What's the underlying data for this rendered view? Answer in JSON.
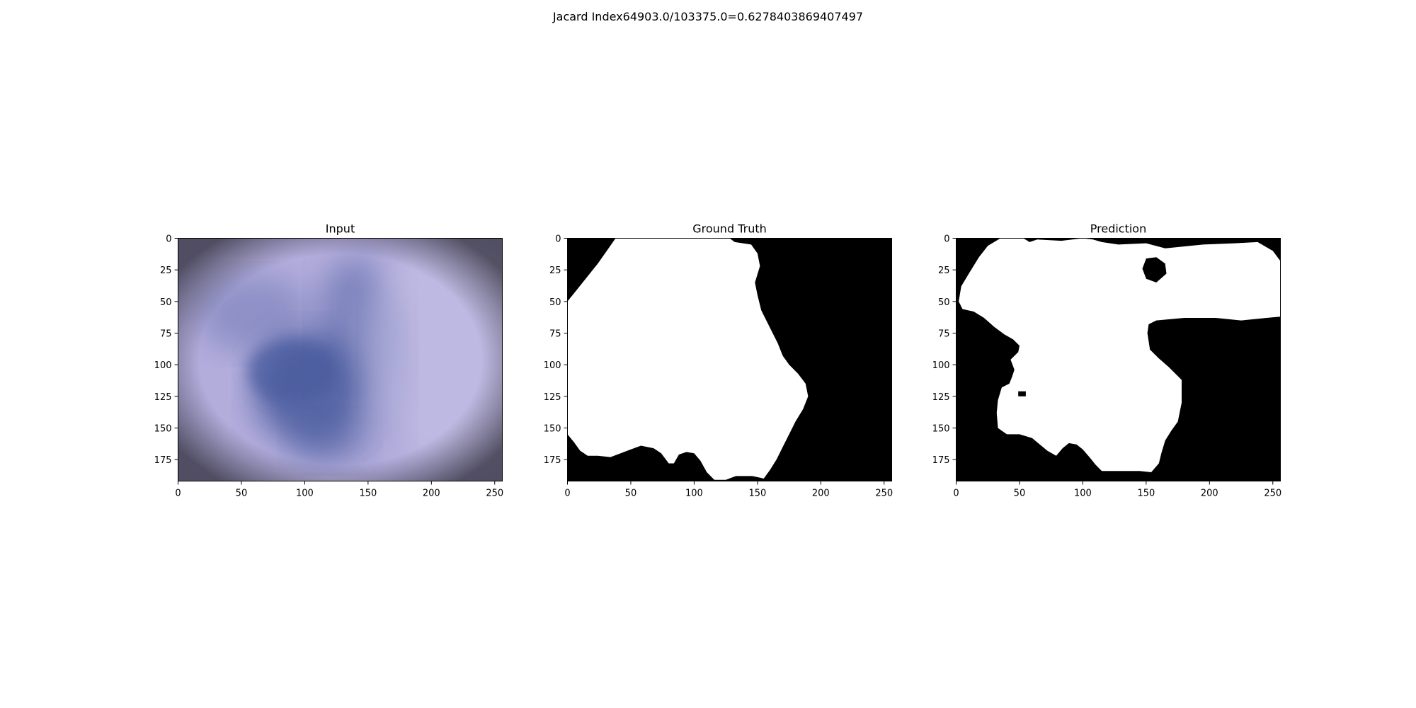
{
  "figure": {
    "title": "Jacard Index64903.0/103375.0=0.6278403869407497"
  },
  "colors": {
    "mask_foreground": "#ffffff",
    "mask_background": "#000000",
    "input_base": "#b3addc",
    "input_lesion": "#4a5b9e",
    "input_vignette": "#4a3c5a"
  },
  "chart_data": [
    {
      "type": "image",
      "title": "Input",
      "content": "dermoscopy image",
      "x_ticks": [
        0,
        50,
        100,
        150,
        200,
        250
      ],
      "y_ticks": [
        0,
        25,
        50,
        75,
        100,
        125,
        150,
        175
      ],
      "xlim": [
        0,
        256
      ],
      "ylim": [
        192,
        0
      ]
    },
    {
      "type": "image",
      "title": "Ground Truth",
      "content": "binary mask",
      "x_ticks": [
        0,
        50,
        100,
        150,
        200,
        250
      ],
      "y_ticks": [
        0,
        25,
        50,
        75,
        100,
        125,
        150,
        175
      ],
      "xlim": [
        0,
        256
      ],
      "ylim": [
        192,
        0
      ],
      "mask_outline": [
        [
          38,
          0
        ],
        [
          128,
          0
        ],
        [
          132,
          3
        ],
        [
          145,
          5
        ],
        [
          150,
          12
        ],
        [
          152,
          22
        ],
        [
          148,
          35
        ],
        [
          150,
          45
        ],
        [
          153,
          57
        ],
        [
          158,
          67
        ],
        [
          162,
          75
        ],
        [
          166,
          83
        ],
        [
          170,
          93
        ],
        [
          175,
          100
        ],
        [
          182,
          107
        ],
        [
          188,
          115
        ],
        [
          190,
          125
        ],
        [
          186,
          135
        ],
        [
          180,
          145
        ],
        [
          175,
          155
        ],
        [
          170,
          165
        ],
        [
          165,
          175
        ],
        [
          160,
          183
        ],
        [
          155,
          190
        ],
        [
          146,
          188
        ],
        [
          133,
          188
        ],
        [
          125,
          191
        ],
        [
          116,
          191
        ],
        [
          110,
          185
        ],
        [
          105,
          176
        ],
        [
          100,
          170
        ],
        [
          94,
          169
        ],
        [
          88,
          171
        ],
        [
          84,
          178
        ],
        [
          80,
          178
        ],
        [
          74,
          170
        ],
        [
          68,
          166
        ],
        [
          58,
          164
        ],
        [
          50,
          167
        ],
        [
          42,
          170
        ],
        [
          34,
          173
        ],
        [
          24,
          172
        ],
        [
          16,
          172
        ],
        [
          10,
          168
        ],
        [
          5,
          161
        ],
        [
          0,
          155
        ],
        [
          0,
          50
        ],
        [
          8,
          40
        ],
        [
          16,
          30
        ],
        [
          24,
          20
        ],
        [
          31,
          10
        ]
      ]
    },
    {
      "type": "image",
      "title": "Prediction",
      "content": "binary mask",
      "x_ticks": [
        0,
        50,
        100,
        150,
        200,
        250
      ],
      "y_ticks": [
        0,
        25,
        50,
        75,
        100,
        125,
        150,
        175
      ],
      "xlim": [
        0,
        256
      ],
      "ylim": [
        192,
        0
      ],
      "mask_outline": [
        [
          35,
          0
        ],
        [
          53,
          0
        ],
        [
          58,
          3
        ],
        [
          64,
          1
        ],
        [
          83,
          2
        ],
        [
          100,
          0
        ],
        [
          108,
          1
        ],
        [
          115,
          3
        ],
        [
          128,
          5
        ],
        [
          150,
          4
        ],
        [
          165,
          8
        ],
        [
          195,
          5
        ],
        [
          220,
          4
        ],
        [
          238,
          3
        ],
        [
          250,
          10
        ],
        [
          256,
          18
        ],
        [
          256,
          62
        ],
        [
          245,
          63
        ],
        [
          225,
          65
        ],
        [
          205,
          63
        ],
        [
          180,
          63
        ],
        [
          158,
          65
        ],
        [
          152,
          68
        ],
        [
          151,
          75
        ],
        [
          153,
          88
        ],
        [
          160,
          95
        ],
        [
          168,
          102
        ],
        [
          178,
          112
        ],
        [
          178,
          130
        ],
        [
          175,
          145
        ],
        [
          170,
          152
        ],
        [
          165,
          160
        ],
        [
          162,
          170
        ],
        [
          160,
          178
        ],
        [
          154,
          185
        ],
        [
          145,
          184
        ],
        [
          130,
          184
        ],
        [
          115,
          184
        ],
        [
          110,
          179
        ],
        [
          106,
          174
        ],
        [
          100,
          167
        ],
        [
          95,
          163
        ],
        [
          89,
          162
        ],
        [
          84,
          166
        ],
        [
          79,
          172
        ],
        [
          72,
          168
        ],
        [
          66,
          163
        ],
        [
          60,
          158
        ],
        [
          50,
          155
        ],
        [
          40,
          155
        ],
        [
          33,
          150
        ],
        [
          32,
          138
        ],
        [
          33,
          128
        ],
        [
          36,
          118
        ],
        [
          42,
          115
        ],
        [
          44,
          110
        ],
        [
          46,
          104
        ],
        [
          43,
          96
        ],
        [
          49,
          90
        ],
        [
          50,
          85
        ],
        [
          45,
          80
        ],
        [
          38,
          76
        ],
        [
          30,
          70
        ],
        [
          22,
          63
        ],
        [
          14,
          58
        ],
        [
          5,
          56
        ],
        [
          2,
          50
        ],
        [
          4,
          38
        ],
        [
          10,
          28
        ],
        [
          18,
          15
        ],
        [
          25,
          6
        ]
      ],
      "mask_hole": [
        [
          150,
          16
        ],
        [
          158,
          15
        ],
        [
          165,
          20
        ],
        [
          166,
          28
        ],
        [
          158,
          35
        ],
        [
          150,
          32
        ],
        [
          147,
          24
        ]
      ],
      "mask_speck": [
        [
          49,
          121
        ],
        [
          55,
          121
        ],
        [
          55,
          125
        ],
        [
          49,
          125
        ]
      ]
    }
  ]
}
